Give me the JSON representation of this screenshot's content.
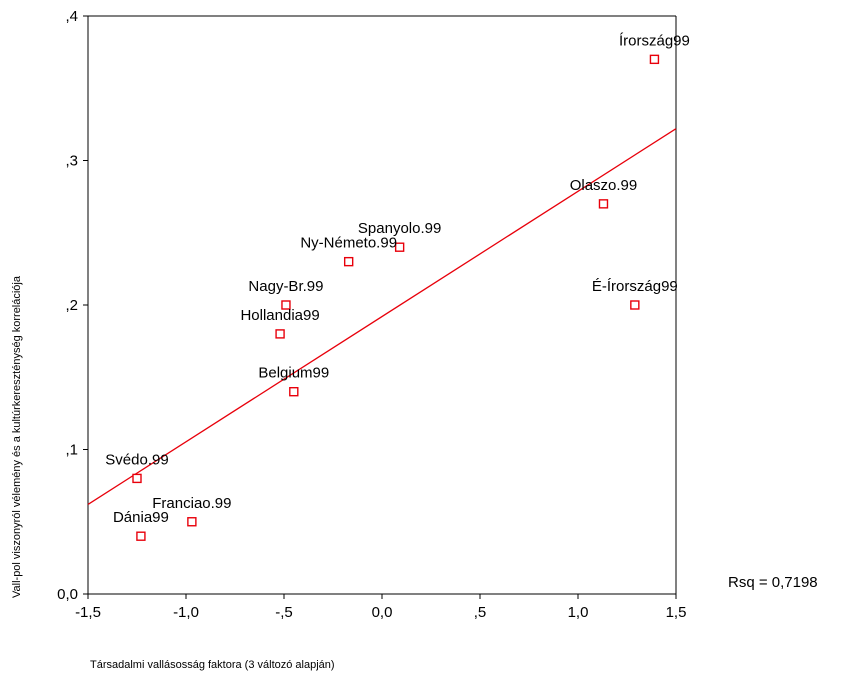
{
  "chart_data": {
    "type": "scatter",
    "title": "",
    "xlabel": "Társadalmi vallásosság faktora (3 változó alapján)",
    "ylabel": "Vall-pol viszonyról vélemény és a kultúrkeresztény­ség korrelációja",
    "xlim": [
      -1.5,
      1.5
    ],
    "ylim": [
      0.0,
      0.4
    ],
    "xticks": [
      "-1,5",
      "-1,0",
      "-,5",
      "0,0",
      ",5",
      "1,0",
      "1,5"
    ],
    "xtick_values": [
      -1.5,
      -1.0,
      -0.5,
      0.0,
      0.5,
      1.0,
      1.5
    ],
    "yticks": [
      "0,0",
      ",1",
      ",2",
      ",3",
      ",4"
    ],
    "ytick_values": [
      0.0,
      0.1,
      0.2,
      0.3,
      0.4
    ],
    "grid": false,
    "marker_color": "#e8000b",
    "fit_line_color": "#e8000b",
    "points": [
      {
        "label": "Írország99",
        "x": 1.39,
        "y": 0.37
      },
      {
        "label": "Olaszo.99",
        "x": 1.13,
        "y": 0.27
      },
      {
        "label": "É-Írország99",
        "x": 1.29,
        "y": 0.2
      },
      {
        "label": "Spanyolo.99",
        "x": 0.09,
        "y": 0.24
      },
      {
        "label": "Ny-Németo.99",
        "x": -0.17,
        "y": 0.23
      },
      {
        "label": "Nagy-Br.99",
        "x": -0.49,
        "y": 0.2
      },
      {
        "label": "Hollandia99",
        "x": -0.52,
        "y": 0.18
      },
      {
        "label": "Belgium99",
        "x": -0.45,
        "y": 0.14
      },
      {
        "label": "Svédo.99",
        "x": -1.25,
        "y": 0.08
      },
      {
        "label": "Franciao.99",
        "x": -0.97,
        "y": 0.05
      },
      {
        "label": "Dánia99",
        "x": -1.23,
        "y": 0.04
      }
    ],
    "fit_line": {
      "x": [
        -1.5,
        1.5
      ],
      "y": [
        0.062,
        0.322
      ]
    },
    "rsq_text": "Rsq = 0,7198"
  }
}
